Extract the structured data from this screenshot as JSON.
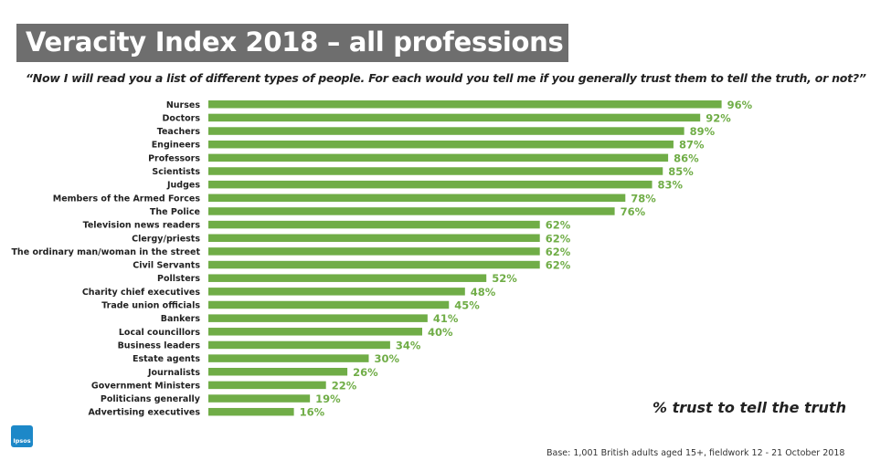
{
  "title": "Veracity Index 2018 – all professions",
  "question": "“Now I will read you a list of different types of people. For each would you tell me if you generally trust them to tell the truth, or not?”",
  "legend_label": "% trust to tell the truth",
  "base_note": "Base: 1,001 British adults aged 15+, fieldwork 12 - 21 October 2018",
  "logo_text": "Ipsos",
  "colors": {
    "bar": "#70ad47",
    "label": "#70ad47",
    "title_bg": "#6e6e6e",
    "logo": "#1d88c8"
  },
  "chart_data": {
    "type": "bar",
    "orientation": "horizontal",
    "title": "Veracity Index 2018 – all professions",
    "xlabel": "% trust to tell the truth",
    "ylabel": "",
    "xlim": [
      0,
      100
    ],
    "grid": false,
    "value_suffix": "%",
    "categories": [
      "Nurses",
      "Doctors",
      "Teachers",
      "Engineers",
      "Professors",
      "Scientists",
      "Judges",
      "Members of the Armed Forces",
      "The Police",
      "Television news readers",
      "Clergy/priests",
      "The ordinary man/woman in the street",
      "Civil Servants",
      "Pollsters",
      "Charity chief executives",
      "Trade union officials",
      "Bankers",
      "Local councillors",
      "Business leaders",
      "Estate agents",
      "Journalists",
      "Government Ministers",
      "Politicians generally",
      "Advertising executives"
    ],
    "values": [
      96,
      92,
      89,
      87,
      86,
      85,
      83,
      78,
      76,
      62,
      62,
      62,
      62,
      52,
      48,
      45,
      41,
      40,
      34,
      30,
      26,
      22,
      19,
      16
    ]
  }
}
